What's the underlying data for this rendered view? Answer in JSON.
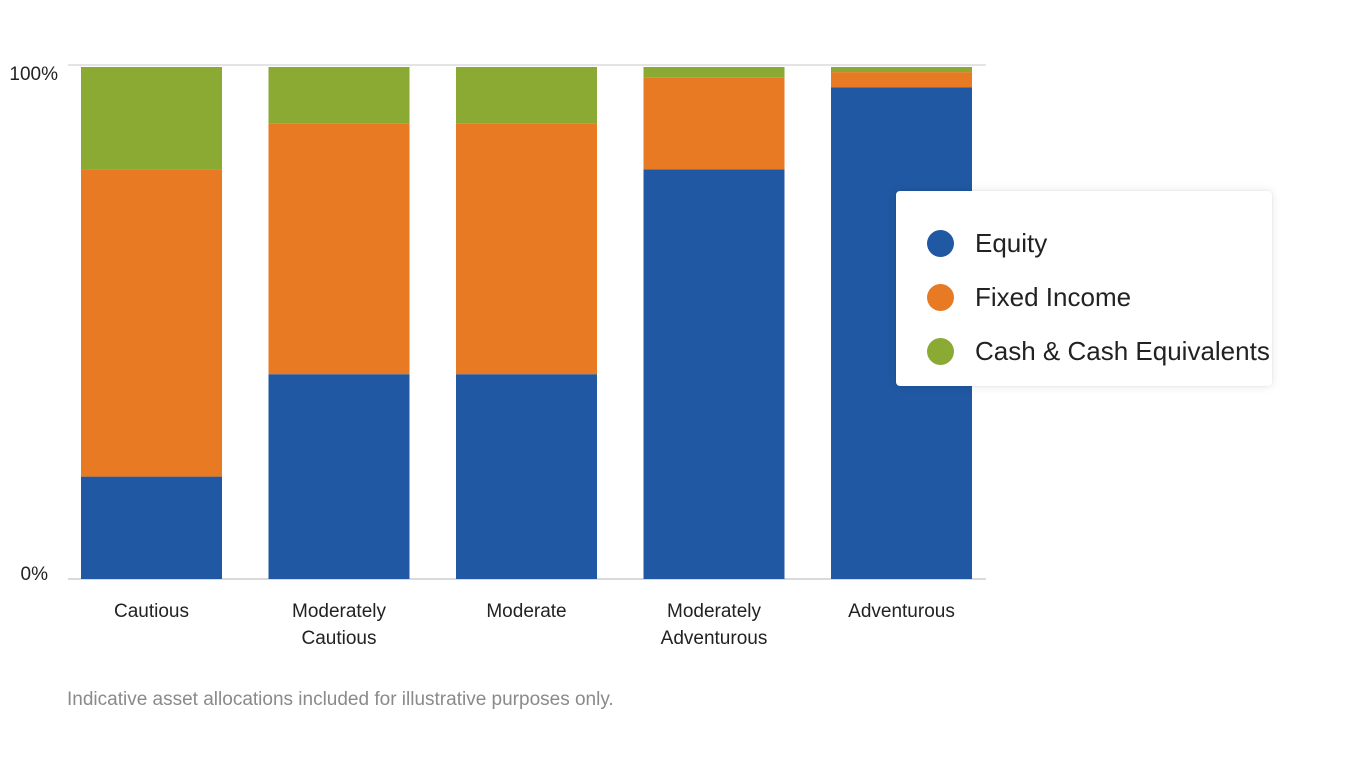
{
  "chart_data": {
    "type": "bar",
    "stacked": true,
    "categories": [
      [
        "Cautious"
      ],
      [
        "Moderately",
        "Cautious"
      ],
      [
        "Moderate"
      ],
      [
        "Moderately",
        "Adventurous"
      ],
      [
        "Adventurous"
      ]
    ],
    "series": [
      {
        "name": "Equity",
        "color": "#2058A3",
        "values": [
          20,
          40,
          40,
          80,
          96
        ]
      },
      {
        "name": "Fixed Income",
        "color": "#E77A22",
        "values": [
          60,
          49,
          49,
          18,
          3
        ]
      },
      {
        "name": "Cash & Cash Equivalents",
        "color": "#8AAA33",
        "values": [
          20,
          11,
          11,
          2,
          1
        ]
      }
    ],
    "y_ticks": [
      "0%",
      "100%"
    ],
    "ylim": [
      0,
      100
    ],
    "grid": false,
    "legend_position": "right"
  },
  "footnote": "Indicative asset allocations included for illustrative purposes only."
}
